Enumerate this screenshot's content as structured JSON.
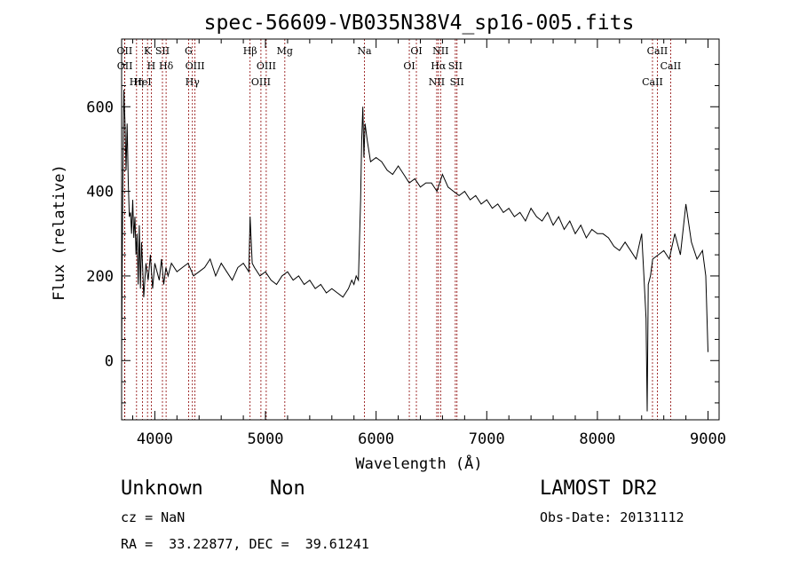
{
  "chart_data": {
    "type": "line",
    "title": "spec-56609-VB035N38V4_sp16-005.fits",
    "xlabel": "Wavelength (Å)",
    "ylabel": "Flux (relative)",
    "xlim": [
      3700,
      9100
    ],
    "ylim": [
      -140,
      760
    ],
    "xticks": [
      4000,
      5000,
      6000,
      7000,
      8000,
      9000
    ],
    "yticks": [
      0,
      200,
      400,
      600
    ],
    "grid": false,
    "color": "#000000",
    "line_color": "#8b0000",
    "series": [
      {
        "x": [
          3700,
          3705,
          3710,
          3715,
          3720,
          3725,
          3730,
          3740,
          3750,
          3760,
          3770,
          3780,
          3790,
          3800,
          3810,
          3820,
          3830,
          3840,
          3850,
          3860,
          3870,
          3880,
          3890,
          3900,
          3920,
          3940,
          3960,
          3980,
          4000,
          4020,
          4040,
          4060,
          4080,
          4100,
          4120,
          4150,
          4200,
          4250,
          4300,
          4350,
          4400,
          4450,
          4500,
          4550,
          4600,
          4650,
          4700,
          4750,
          4800,
          4850,
          4861,
          4880,
          4900,
          4950,
          5000,
          5050,
          5100,
          5150,
          5200,
          5250,
          5300,
          5350,
          5400,
          5450,
          5500,
          5550,
          5600,
          5650,
          5700,
          5750,
          5780,
          5800,
          5820,
          5840,
          5860,
          5870,
          5880,
          5890,
          5900,
          5920,
          5950,
          6000,
          6050,
          6100,
          6150,
          6200,
          6250,
          6300,
          6350,
          6400,
          6450,
          6500,
          6550,
          6600,
          6650,
          6700,
          6750,
          6800,
          6850,
          6900,
          6950,
          7000,
          7050,
          7100,
          7150,
          7200,
          7250,
          7300,
          7350,
          7400,
          7450,
          7500,
          7550,
          7600,
          7650,
          7700,
          7750,
          7800,
          7850,
          7900,
          7950,
          8000,
          8050,
          8100,
          8150,
          8200,
          8250,
          8300,
          8350,
          8400,
          8420,
          8440,
          8450,
          8460,
          8480,
          8500,
          8550,
          8600,
          8650,
          8700,
          8750,
          8800,
          8850,
          8900,
          8950,
          8980,
          9000
        ],
        "y": [
          0,
          210,
          380,
          520,
          640,
          600,
          570,
          450,
          560,
          420,
          340,
          350,
          300,
          380,
          290,
          340,
          250,
          300,
          180,
          320,
          170,
          280,
          220,
          150,
          230,
          190,
          250,
          170,
          230,
          210,
          190,
          240,
          180,
          220,
          200,
          230,
          210,
          220,
          230,
          200,
          210,
          220,
          240,
          200,
          230,
          210,
          190,
          220,
          230,
          210,
          340,
          230,
          220,
          200,
          210,
          190,
          180,
          200,
          210,
          190,
          200,
          180,
          190,
          170,
          180,
          160,
          170,
          160,
          150,
          170,
          190,
          180,
          200,
          190,
          380,
          520,
          600,
          480,
          560,
          520,
          470,
          480,
          470,
          450,
          440,
          460,
          440,
          420,
          430,
          410,
          420,
          420,
          400,
          440,
          410,
          400,
          390,
          400,
          380,
          390,
          370,
          380,
          360,
          370,
          350,
          360,
          340,
          350,
          330,
          360,
          340,
          330,
          350,
          320,
          340,
          310,
          330,
          300,
          320,
          290,
          310,
          300,
          300,
          290,
          270,
          260,
          280,
          260,
          240,
          300,
          200,
          100,
          -120,
          180,
          200,
          240,
          250,
          260,
          240,
          300,
          250,
          370,
          280,
          240,
          260,
          200,
          20
        ]
      }
    ],
    "annotations": [
      {
        "text": "OII",
        "x": 3727
      },
      {
        "text": "OII",
        "x": 3729
      },
      {
        "text": "Hη",
        "x": 3835
      },
      {
        "text": "K",
        "x": 3934
      },
      {
        "text": "H",
        "x": 3968
      },
      {
        "text": "HeI",
        "x": 3889
      },
      {
        "text": "SII",
        "x": 4069
      },
      {
        "text": "Hδ",
        "x": 4102
      },
      {
        "text": "G",
        "x": 4305
      },
      {
        "text": "OIII",
        "x": 4363
      },
      {
        "text": "Hγ",
        "x": 4340
      },
      {
        "text": "Hβ",
        "x": 4861
      },
      {
        "text": "OIII",
        "x": 5007
      },
      {
        "text": "OIII",
        "x": 4959
      },
      {
        "text": "Mg",
        "x": 5175
      },
      {
        "text": "Na",
        "x": 5894
      },
      {
        "text": "OI",
        "x": 6364
      },
      {
        "text": "OI",
        "x": 6300
      },
      {
        "text": "NII",
        "x": 6583
      },
      {
        "text": "Hα",
        "x": 6563
      },
      {
        "text": "SII",
        "x": 6716
      },
      {
        "text": "NII",
        "x": 6548
      },
      {
        "text": "SII",
        "x": 6731
      },
      {
        "text": "CaII",
        "x": 8542
      },
      {
        "text": "CaII",
        "x": 8662
      },
      {
        "text": "CaII",
        "x": 8498
      }
    ]
  },
  "info": {
    "object_class": "Unknown",
    "subclass": "Non",
    "survey": "LAMOST DR2",
    "cz": "cz = NaN",
    "obs_date": "Obs-Date: 20131112",
    "coords": "RA =  33.22877, DEC =  39.61241"
  }
}
